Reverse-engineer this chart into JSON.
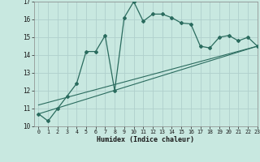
{
  "xlabel": "Humidex (Indice chaleur)",
  "xlim": [
    -0.5,
    23
  ],
  "ylim": [
    10,
    17
  ],
  "yticks": [
    10,
    11,
    12,
    13,
    14,
    15,
    16,
    17
  ],
  "xticks": [
    0,
    1,
    2,
    3,
    4,
    5,
    6,
    7,
    8,
    9,
    10,
    11,
    12,
    13,
    14,
    15,
    16,
    17,
    18,
    19,
    20,
    21,
    22,
    23
  ],
  "bg_color": "#c8e8e0",
  "grid_color": "#b0d0cc",
  "line_color": "#2a6b5e",
  "series1_x": [
    0,
    1,
    2,
    3,
    4,
    5,
    6,
    7,
    8,
    9,
    10,
    11,
    12,
    13,
    14,
    15,
    16,
    17,
    18,
    19,
    20,
    21,
    22,
    23
  ],
  "series1_y": [
    10.7,
    10.3,
    11.0,
    11.7,
    12.4,
    14.2,
    14.2,
    15.1,
    12.0,
    16.1,
    17.0,
    15.9,
    16.3,
    16.3,
    16.1,
    15.8,
    15.75,
    14.5,
    14.4,
    15.0,
    15.1,
    14.8,
    15.0,
    14.5
  ],
  "series2_x": [
    0,
    23
  ],
  "series2_y": [
    10.7,
    14.5
  ],
  "series3_x": [
    0,
    23
  ],
  "series3_y": [
    11.2,
    14.5
  ]
}
